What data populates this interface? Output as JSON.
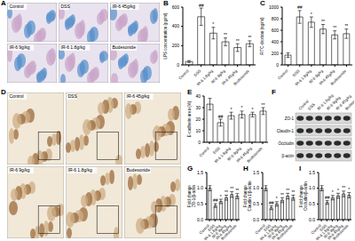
{
  "histology": {
    "label": "A",
    "images": [
      "Control",
      "DSS",
      "IR-6 45g/kg",
      "IR-6 9g/kg",
      "IR-6 1.8g/kg",
      "Budesonide"
    ]
  },
  "ihc": {
    "label": "D",
    "images": [
      "Control",
      "DSS",
      "IR-6 45g/kg",
      "IR-6 9g/kg",
      "IR-6 1.8g/kg",
      "Budesonide"
    ]
  },
  "western_blot": {
    "label": "F",
    "lanes": [
      "Control",
      "DSS",
      "IR-6 1.8g/kg",
      "IR-6 9g/kg",
      "IR-6 45g/kg",
      "Budesonide"
    ],
    "bands": [
      "ZO-1",
      "Claudin-1",
      "Occludin",
      "β-actin"
    ]
  },
  "chart_data": [
    {
      "label": "B",
      "type": "bar",
      "y_label": "LPS concentration (pg/ml)",
      "categories": [
        "Control",
        "DSS",
        "IR-6 1.8g/kg",
        "IR-6 9g/kg",
        "IR-6 45g/kg",
        "Budesonide"
      ],
      "values": [
        35,
        500,
        330,
        240,
        180,
        220
      ],
      "errors": [
        10,
        90,
        60,
        40,
        40,
        30
      ],
      "annotations": [
        null,
        "##",
        "*",
        "**",
        "**",
        "**"
      ],
      "color": "#ffffff",
      "ylim": [
        0,
        600
      ],
      "yticks": [
        0,
        200,
        400,
        600
      ]
    },
    {
      "label": "C",
      "type": "bar",
      "y_label": "FITC-dextran (ng/ml)",
      "categories": [
        "Control",
        "DSS",
        "IR-6 1.8g/kg",
        "IR-6 9g/kg",
        "IR-6 45g/kg",
        "Budesonide"
      ],
      "values": [
        170,
        830,
        740,
        620,
        520,
        540
      ],
      "errors": [
        40,
        110,
        90,
        80,
        70,
        80
      ],
      "annotations": [
        null,
        "##",
        "*",
        "**",
        "**",
        "**"
      ],
      "color": "#ffffff",
      "ylim": [
        0,
        1000
      ],
      "yticks": [
        0,
        200,
        400,
        600,
        800,
        1000
      ]
    },
    {
      "label": "E",
      "type": "bar",
      "y_label": "E-cadherin area (%)",
      "categories": [
        "Control",
        "DSS",
        "IR-6 1.8g/kg",
        "IR-6 9g/kg",
        "IR-6 45g/kg",
        "Budesonide"
      ],
      "values": [
        33,
        17,
        23,
        24,
        24,
        27
      ],
      "errors": [
        5,
        3,
        3,
        3,
        2,
        3
      ],
      "annotations": [
        null,
        "##",
        "*",
        "*",
        "*",
        "**"
      ],
      "color": "#ffffff",
      "ylim": [
        0,
        40
      ],
      "yticks": [
        0,
        10,
        20,
        30,
        40
      ]
    },
    {
      "label": "G",
      "type": "bar",
      "y_label": "Fold change ZO-1/β-actin",
      "categories": [
        "Control",
        "DSS",
        "IR-6 1.8g/kg",
        "IR-6 9g/kg",
        "IR-6 45g/kg",
        "Budesonide"
      ],
      "values": [
        1.0,
        0.45,
        0.58,
        0.7,
        0.8,
        0.75
      ],
      "errors": [
        0.08,
        0.06,
        0.07,
        0.08,
        0.09,
        0.08
      ],
      "annotations": [
        null,
        "##",
        "*",
        "**",
        "**",
        "**"
      ],
      "color": "#ffffff",
      "ylim": [
        0,
        1.5
      ],
      "yticks": [
        {
          "value": 0,
          "label": "0.0"
        },
        0.5,
        {
          "value": 1,
          "label": "1.0"
        },
        1.5
      ]
    },
    {
      "label": "H",
      "type": "bar",
      "y_label": "Fold change Claudin-1/β-actin",
      "categories": [
        "Control",
        "DSS",
        "IR-6 1.8g/kg",
        "IR-6 9g/kg",
        "IR-6 45g/kg",
        "Budesonide"
      ],
      "values": [
        1.0,
        0.38,
        0.5,
        0.62,
        0.75,
        0.7
      ],
      "errors": [
        0.08,
        0.06,
        0.07,
        0.08,
        0.09,
        0.08
      ],
      "annotations": [
        null,
        "##",
        "*",
        "**",
        "**",
        "**"
      ],
      "color": "#ffffff",
      "ylim": [
        0,
        1.5
      ],
      "yticks": [
        {
          "value": 0,
          "label": "0.0"
        },
        0.5,
        {
          "value": 1,
          "label": "1.0"
        },
        1.5
      ]
    },
    {
      "label": "I",
      "type": "bar",
      "y_label": "Fold change Occludin/β-actin",
      "categories": [
        "Control",
        "DSS",
        "IR-6 1.8g/kg",
        "IR-6 9g/kg",
        "IR-6 45g/kg",
        "Budesonide"
      ],
      "values": [
        1.0,
        0.55,
        0.7,
        0.76,
        0.82,
        0.78
      ],
      "errors": [
        0.08,
        0.06,
        0.07,
        0.08,
        0.09,
        0.08
      ],
      "annotations": [
        null,
        "##",
        "*",
        "*",
        "**",
        "*"
      ],
      "color": "#ffffff",
      "ylim": [
        0,
        1.5
      ],
      "yticks": [
        {
          "value": 0,
          "label": "0.0"
        },
        0.5,
        {
          "value": 1,
          "label": "1.0"
        },
        1.5
      ]
    }
  ]
}
